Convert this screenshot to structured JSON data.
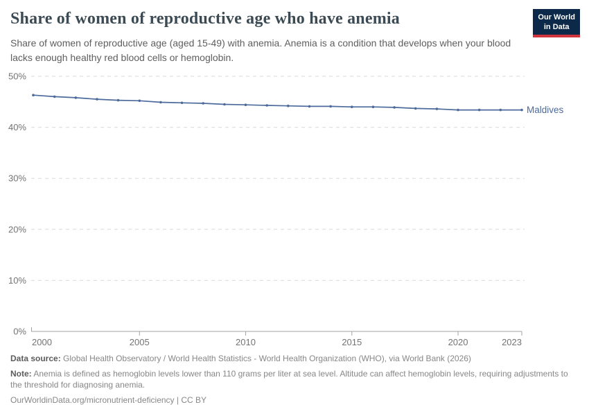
{
  "header": {
    "title": "Share of women of reproductive age who have anemia",
    "subtitle": "Share of women of reproductive age (aged 15-49) with anemia. Anemia is a condition that develops when your blood lacks enough healthy red blood cells or hemoglobin.",
    "logo": {
      "line1": "Our World",
      "line2": "in Data"
    }
  },
  "chart_data": {
    "type": "line",
    "title": "Share of women of reproductive age who have anemia",
    "x": [
      2000,
      2001,
      2002,
      2003,
      2004,
      2005,
      2006,
      2007,
      2008,
      2009,
      2010,
      2011,
      2012,
      2013,
      2014,
      2015,
      2016,
      2017,
      2018,
      2019,
      2020,
      2021,
      2022,
      2023
    ],
    "series": [
      {
        "name": "Maldives",
        "color": "#4C6A9C",
        "values": [
          46.3,
          46.0,
          45.8,
          45.5,
          45.3,
          45.2,
          44.9,
          44.8,
          44.7,
          44.5,
          44.4,
          44.3,
          44.2,
          44.1,
          44.1,
          44.0,
          44.0,
          43.9,
          43.7,
          43.6,
          43.4,
          43.4,
          43.4,
          43.4
        ]
      }
    ],
    "ylim": [
      0,
      50
    ],
    "yticks": [
      0,
      10,
      20,
      30,
      40,
      50
    ],
    "ytick_labels": [
      "0%",
      "10%",
      "20%",
      "30%",
      "40%",
      "50%"
    ],
    "xticks": [
      2000,
      2005,
      2010,
      2015,
      2020,
      2023
    ],
    "xtick_labels": [
      "2000",
      "2005",
      "2010",
      "2015",
      "2020",
      "2023"
    ],
    "grid": "horizontal-dashed",
    "legend_position": "end-of-line",
    "end_label": "Maldives"
  },
  "footer": {
    "data_source_label": "Data source:",
    "data_source_text": "Global Health Observatory / World Health Statistics - World Health Organization (WHO), via World Bank (2026)",
    "note_label": "Note:",
    "note_text": "Anemia is defined as hemoglobin levels lower than 110 grams per liter at sea level. Altitude can affect hemoglobin levels, requiring adjustments to the threshold for diagnosing anemia.",
    "url_text": "OurWorldinData.org/micronutrient-deficiency",
    "separator": "|",
    "license_text": "CC BY"
  },
  "colors": {
    "accent_line": "#4C6A9C",
    "logo_bg": "#0d2949",
    "logo_stripe": "#d0353e",
    "title_text": "#3b4a53",
    "subtitle_text": "#5e5e5e",
    "grid": "#d9d9d9",
    "axis": "#a3a3a3",
    "tick_text": "#737373",
    "footer_text": "#878787"
  }
}
